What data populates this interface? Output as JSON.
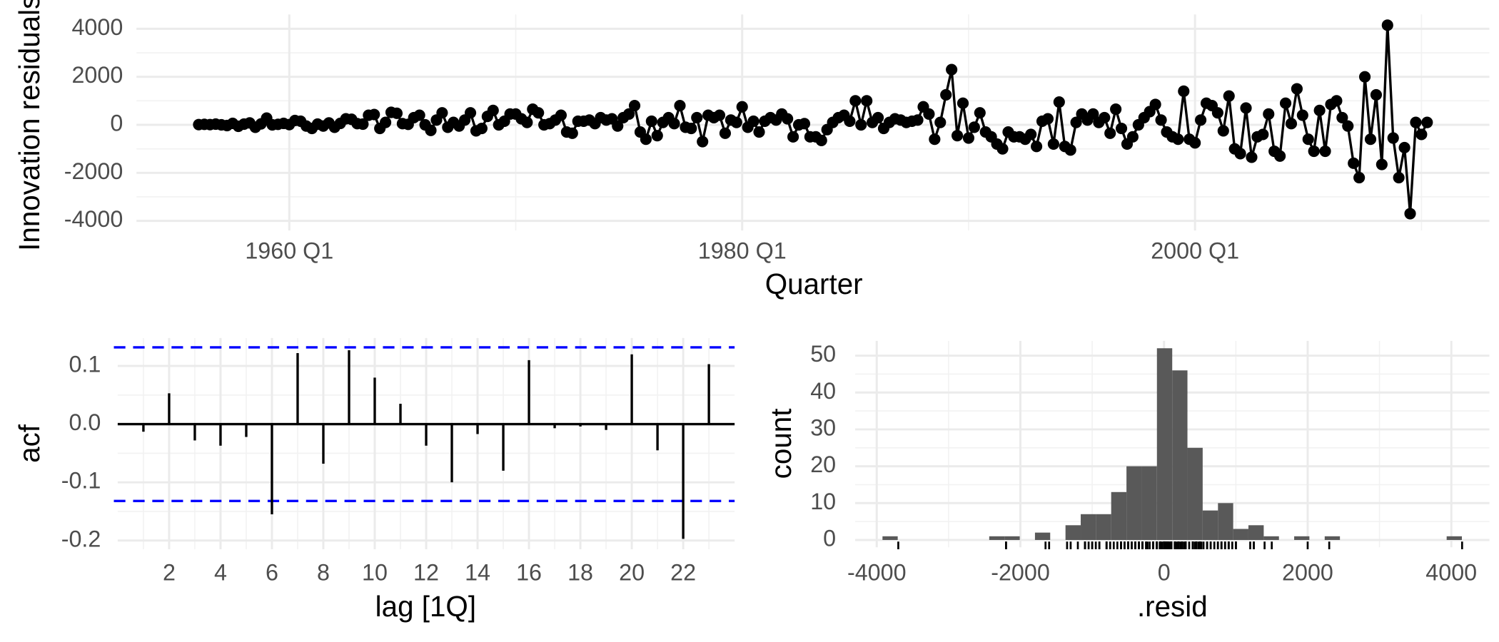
{
  "chart_data": [
    {
      "type": "line",
      "x_label": "Quarter",
      "y_label": "Innovation residuals",
      "color": "#000000",
      "markers": true,
      "grid": true,
      "x": [
        "1956 Q1",
        "1956 Q2",
        "1956 Q3",
        "1956 Q4",
        "1957 Q1",
        "1957 Q2",
        "1957 Q3",
        "1957 Q4",
        "1958 Q1",
        "1958 Q2",
        "1958 Q3",
        "1958 Q4",
        "1959 Q1",
        "1959 Q2",
        "1959 Q3",
        "1959 Q4",
        "1960 Q1",
        "1960 Q2",
        "1960 Q3",
        "1960 Q4",
        "1961 Q1",
        "1961 Q2",
        "1961 Q3",
        "1961 Q4",
        "1962 Q1",
        "1962 Q2",
        "1962 Q3",
        "1962 Q4",
        "1963 Q1",
        "1963 Q2",
        "1963 Q3",
        "1963 Q4",
        "1964 Q1",
        "1964 Q2",
        "1964 Q3",
        "1964 Q4",
        "1965 Q1",
        "1965 Q2",
        "1965 Q3",
        "1965 Q4",
        "1966 Q1",
        "1966 Q2",
        "1966 Q3",
        "1966 Q4",
        "1967 Q1",
        "1967 Q2",
        "1967 Q3",
        "1967 Q4",
        "1968 Q1",
        "1968 Q2",
        "1968 Q3",
        "1968 Q4",
        "1969 Q1",
        "1969 Q2",
        "1969 Q3",
        "1969 Q4",
        "1970 Q1",
        "1970 Q2",
        "1970 Q3",
        "1970 Q4",
        "1971 Q1",
        "1971 Q2",
        "1971 Q3",
        "1971 Q4",
        "1972 Q1",
        "1972 Q2",
        "1972 Q3",
        "1972 Q4",
        "1973 Q1",
        "1973 Q2",
        "1973 Q3",
        "1973 Q4",
        "1974 Q1",
        "1974 Q2",
        "1974 Q3",
        "1974 Q4",
        "1975 Q1",
        "1975 Q2",
        "1975 Q3",
        "1975 Q4",
        "1976 Q1",
        "1976 Q2",
        "1976 Q3",
        "1976 Q4",
        "1977 Q1",
        "1977 Q2",
        "1977 Q3",
        "1977 Q4",
        "1978 Q1",
        "1978 Q2",
        "1978 Q3",
        "1978 Q4",
        "1979 Q1",
        "1979 Q2",
        "1979 Q3",
        "1979 Q4",
        "1980 Q1",
        "1980 Q2",
        "1980 Q3",
        "1980 Q4",
        "1981 Q1",
        "1981 Q2",
        "1981 Q3",
        "1981 Q4",
        "1982 Q1",
        "1982 Q2",
        "1982 Q3",
        "1982 Q4",
        "1983 Q1",
        "1983 Q2",
        "1983 Q3",
        "1983 Q4",
        "1984 Q1",
        "1984 Q2",
        "1984 Q3",
        "1984 Q4",
        "1985 Q1",
        "1985 Q2",
        "1985 Q3",
        "1985 Q4",
        "1986 Q1",
        "1986 Q2",
        "1986 Q3",
        "1986 Q4",
        "1987 Q1",
        "1987 Q2",
        "1987 Q3",
        "1987 Q4",
        "1988 Q1",
        "1988 Q2",
        "1988 Q3",
        "1988 Q4",
        "1989 Q1",
        "1989 Q2",
        "1989 Q3",
        "1989 Q4",
        "1990 Q1",
        "1990 Q2",
        "1990 Q3",
        "1990 Q4",
        "1991 Q1",
        "1991 Q2",
        "1991 Q3",
        "1991 Q4",
        "1992 Q1",
        "1992 Q2",
        "1992 Q3",
        "1992 Q4",
        "1993 Q1",
        "1993 Q2",
        "1993 Q3",
        "1993 Q4",
        "1994 Q1",
        "1994 Q2",
        "1994 Q3",
        "1994 Q4",
        "1995 Q1",
        "1995 Q2",
        "1995 Q3",
        "1995 Q4",
        "1996 Q1",
        "1996 Q2",
        "1996 Q3",
        "1996 Q4",
        "1997 Q1",
        "1997 Q2",
        "1997 Q3",
        "1997 Q4",
        "1998 Q1",
        "1998 Q2",
        "1998 Q3",
        "1998 Q4",
        "1999 Q1",
        "1999 Q2",
        "1999 Q3",
        "1999 Q4",
        "2000 Q1",
        "2000 Q2",
        "2000 Q3",
        "2000 Q4",
        "2001 Q1",
        "2001 Q2",
        "2001 Q3",
        "2001 Q4",
        "2002 Q1",
        "2002 Q2",
        "2002 Q3",
        "2002 Q4",
        "2003 Q1",
        "2003 Q2",
        "2003 Q3",
        "2003 Q4",
        "2004 Q1",
        "2004 Q2",
        "2004 Q3",
        "2004 Q4",
        "2005 Q1",
        "2005 Q2",
        "2005 Q3",
        "2005 Q4",
        "2006 Q1",
        "2006 Q2",
        "2006 Q3",
        "2006 Q4",
        "2007 Q1",
        "2007 Q2",
        "2007 Q3",
        "2007 Q4",
        "2008 Q1",
        "2008 Q2",
        "2008 Q3",
        "2008 Q4",
        "2009 Q1",
        "2009 Q2",
        "2009 Q3",
        "2009 Q4",
        "2010 Q1",
        "2010 Q2"
      ],
      "values": [
        10,
        20,
        10,
        30,
        0,
        -30,
        60,
        -60,
        30,
        80,
        -100,
        40,
        280,
        0,
        20,
        60,
        10,
        180,
        150,
        -50,
        -150,
        30,
        -50,
        80,
        -100,
        60,
        250,
        230,
        50,
        30,
        400,
        430,
        -150,
        100,
        520,
        480,
        50,
        20,
        300,
        400,
        0,
        -230,
        200,
        500,
        -100,
        100,
        -50,
        200,
        500,
        -250,
        -150,
        350,
        600,
        0,
        150,
        450,
        450,
        250,
        100,
        650,
        500,
        0,
        50,
        200,
        400,
        -300,
        -350,
        150,
        150,
        200,
        50,
        300,
        200,
        250,
        -50,
        300,
        450,
        800,
        -300,
        -600,
        150,
        -450,
        100,
        300,
        50,
        800,
        -100,
        -150,
        300,
        -700,
        400,
        300,
        400,
        -350,
        200,
        100,
        750,
        -100,
        150,
        -300,
        150,
        300,
        200,
        450,
        250,
        -500,
        0,
        50,
        -500,
        -500,
        -650,
        -200,
        100,
        300,
        400,
        150,
        1000,
        0,
        1000,
        100,
        300,
        -150,
        100,
        250,
        200,
        100,
        150,
        200,
        750,
        450,
        -600,
        100,
        1250,
        2300,
        -450,
        900,
        -550,
        -100,
        500,
        -300,
        -500,
        -800,
        -1000,
        -300,
        -500,
        -500,
        -600,
        -400,
        -900,
        150,
        250,
        -800,
        950,
        -900,
        -1050,
        100,
        450,
        200,
        450,
        100,
        300,
        -350,
        650,
        -150,
        -800,
        -500,
        0,
        300,
        550,
        850,
        200,
        -300,
        -500,
        -600,
        1400,
        -600,
        -750,
        200,
        900,
        800,
        500,
        -250,
        1200,
        -1000,
        -1200,
        700,
        -1350,
        -500,
        -400,
        450,
        -1100,
        -1300,
        900,
        50,
        1500,
        400,
        -600,
        -1100,
        600,
        -1100,
        850,
        1000,
        300,
        -50,
        -1600,
        -2200,
        2000,
        -600,
        1250,
        -1650,
        4150,
        -550,
        -2200,
        -950,
        -3700,
        100,
        -400,
        100
      ],
      "xlim": [
        "1953 Q2",
        "2013 Q1"
      ],
      "xticks": [
        "1960 Q1",
        "1980 Q1",
        "2000 Q1"
      ],
      "xminorticks": [
        "1970 Q1",
        "1990 Q1",
        "2010 Q1"
      ],
      "ylim": [
        -4400,
        4600
      ],
      "yticks": [
        -4000,
        -2000,
        0,
        2000,
        4000
      ],
      "yminorticks": [
        -3000,
        -1000,
        1000,
        3000
      ]
    },
    {
      "type": "acf",
      "x_label": "lag [1Q]",
      "y_label": "acf",
      "color": "#000000",
      "grid": true,
      "x": [
        1,
        2,
        3,
        4,
        5,
        6,
        7,
        8,
        9,
        10,
        11,
        12,
        13,
        14,
        15,
        16,
        17,
        18,
        19,
        20,
        21,
        22,
        23
      ],
      "values": [
        -0.013,
        0.053,
        -0.028,
        -0.037,
        -0.022,
        -0.155,
        0.122,
        -0.068,
        0.127,
        0.08,
        0.035,
        -0.037,
        -0.1,
        -0.017,
        -0.08,
        0.11,
        -0.007,
        -0.004,
        -0.01,
        0.12,
        -0.045,
        -0.197,
        0.103
      ],
      "bounds": [
        -0.132,
        0.132
      ],
      "bounds_color": "#0000ff",
      "xlim": [
        0,
        24
      ],
      "xticks": [
        2,
        4,
        6,
        8,
        10,
        12,
        14,
        16,
        18,
        20,
        22
      ],
      "xminorticks": [
        1,
        3,
        5,
        7,
        9,
        11,
        13,
        15,
        17,
        19,
        21,
        23
      ],
      "ylim": [
        -0.215,
        0.148
      ],
      "yticks": [
        -0.2,
        -0.1,
        {
          "value": 0,
          "label": "0.0"
        },
        0.1
      ],
      "yminorticks": [
        -0.15,
        -0.05,
        0.05
      ]
    },
    {
      "type": "histogram",
      "x_label": ".resid",
      "y_label": "count",
      "color": "#595959",
      "rug": true,
      "grid": true,
      "bins": [
        -3920,
        -3708,
        -3495,
        -3283,
        -3071,
        -2859,
        -2646,
        -2434,
        -2222,
        -2009,
        -1797,
        -1585,
        -1372,
        -1160,
        -948,
        -736,
        -523,
        -311,
        -99,
        114,
        326,
        538,
        751,
        963,
        1175,
        1388,
        1600,
        1812,
        2024,
        2237,
        2449,
        2661,
        2874,
        3086,
        3298,
        3511,
        3723,
        3935,
        4147
      ],
      "values": [
        1,
        0,
        0,
        0,
        0,
        0,
        0,
        1,
        1,
        0,
        2,
        0,
        4,
        7,
        7,
        13,
        20,
        20,
        52,
        46,
        25,
        8,
        10,
        3,
        4,
        1,
        0,
        1,
        0,
        1,
        0,
        0,
        0,
        0,
        0,
        0,
        0,
        1
      ],
      "xlim": [
        -4300,
        4530
      ],
      "xticks": [
        -4000,
        -2000,
        0,
        2000,
        4000
      ],
      "xminorticks": [
        -3000,
        -1000,
        1000,
        3000
      ],
      "ylim": [
        -2,
        54
      ],
      "yticks": [
        0,
        10,
        20,
        30,
        40,
        50
      ],
      "yminorticks": [
        5,
        15,
        25,
        35,
        45
      ]
    }
  ]
}
